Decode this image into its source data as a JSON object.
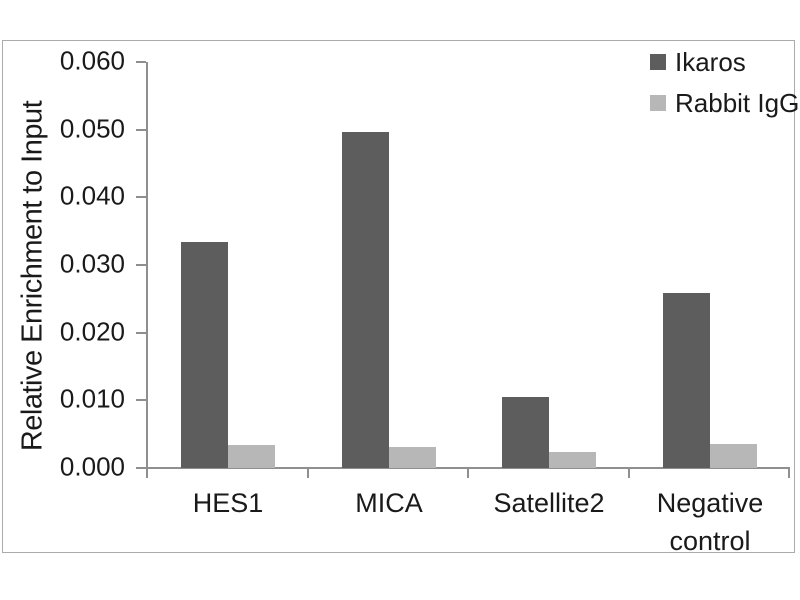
{
  "chart_data": {
    "type": "bar",
    "title": "",
    "ylabel": "Relative Enrichment to Input",
    "xlabel": "",
    "categories": [
      "HES1",
      "MICA",
      "Satellite2",
      "Negative control"
    ],
    "series": [
      {
        "name": "Ikaros",
        "color": "#5d5d5d",
        "values": [
          0.0334,
          0.0497,
          0.0105,
          0.0258
        ]
      },
      {
        "name": "Rabbit IgG",
        "color": "#b7b7b7",
        "values": [
          0.0034,
          0.0031,
          0.0023,
          0.0035
        ]
      }
    ],
    "ylim": [
      0,
      0.06
    ],
    "ytick_labels": [
      "0.000",
      "0.010",
      "0.020",
      "0.030",
      "0.040",
      "0.050",
      "0.060"
    ],
    "grid": false,
    "legend_position": "top-right",
    "colors": {
      "axis": "#8f8f8f",
      "frame": "#ababab",
      "text": "#1a1a1a",
      "background": "#ffffff"
    }
  }
}
